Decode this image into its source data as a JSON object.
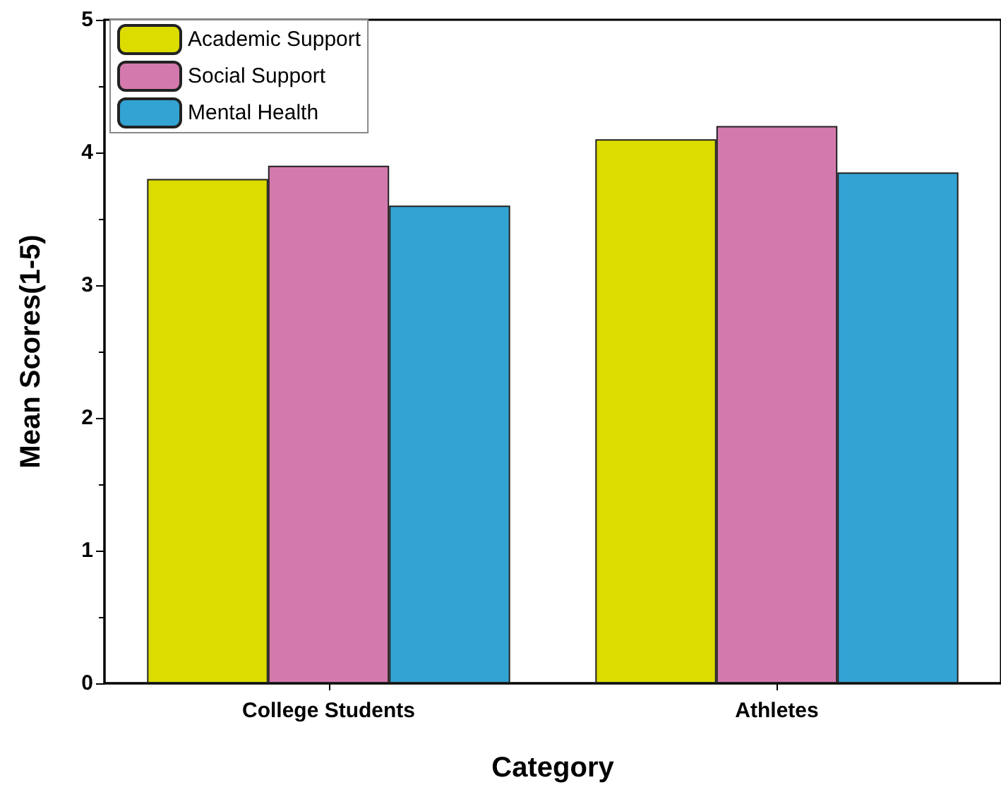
{
  "chart_data": {
    "type": "bar",
    "xlabel": "Category",
    "ylabel": "Mean Scores(1-5)",
    "categories": [
      "College Students",
      "Athletes"
    ],
    "series": [
      {
        "name": "Academic Support",
        "color": "#dcdc00",
        "values": [
          3.8,
          4.1
        ]
      },
      {
        "name": "Social Support",
        "color": "#d479ae",
        "values": [
          3.9,
          4.2
        ]
      },
      {
        "name": "Mental Health",
        "color": "#33a3d3",
        "values": [
          3.6,
          3.85
        ]
      }
    ],
    "ylim": [
      0,
      5
    ],
    "yticks": [
      0,
      1,
      2,
      3,
      4,
      5
    ],
    "legend": "top left",
    "grid": false
  }
}
